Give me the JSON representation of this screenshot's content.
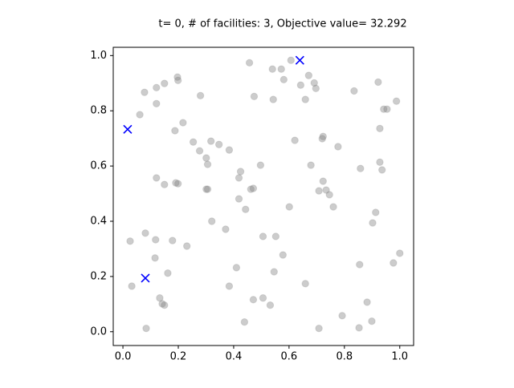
{
  "chart_data": {
    "type": "scatter",
    "title": "t= 0, # of facilities: 3, Objective value= 32.292",
    "xlim": [
      -0.035,
      1.05
    ],
    "ylim": [
      -0.05,
      1.03
    ],
    "xticks": [
      {
        "value": 0,
        "label": "0.0"
      },
      {
        "value": 0.2,
        "label": "0.2"
      },
      {
        "value": 0.4,
        "label": "0.4"
      },
      {
        "value": 0.6,
        "label": "0.6"
      },
      {
        "value": 0.8,
        "label": "0.8"
      },
      {
        "value": 1,
        "label": "1.0"
      }
    ],
    "yticks": [
      {
        "value": 0,
        "label": "0.0"
      },
      {
        "value": 0.2,
        "label": "0.2"
      },
      {
        "value": 0.4,
        "label": "0.4"
      },
      {
        "value": 0.6,
        "label": "0.6"
      },
      {
        "value": 0.8,
        "label": "0.8"
      },
      {
        "value": 1,
        "label": "1.0"
      }
    ],
    "grid": false,
    "series": [
      {
        "color": "gray",
        "alpha": 0.4,
        "marker": "o",
        "x": [
          0.457,
          0.54,
          0.572,
          0.607,
          0.671,
          0.691,
          0.642,
          0.697,
          0.581,
          0.474,
          0.543,
          0.659,
          0.835,
          0.922,
          0.942,
          0.954,
          0.988,
          0.928,
          0.621,
          0.72,
          0.723,
          0.777,
          0.858,
          0.928,
          0.936,
          0.723,
          0.734,
          0.708,
          0.746,
          0.76,
          0.679,
          0.497,
          0.419,
          0.601,
          0.913,
          0.902,
          0.552,
          0.506,
          0.855,
          0.977,
          1.0,
          0.578,
          0.546,
          0.659,
          0.882,
          0.792,
          0.899,
          0.853,
          0.708,
          0.532,
          0.506,
          0.471,
          0.439,
          0.443,
          0.371,
          0.41,
          0.384,
          0.462,
          0.471,
          0.419,
          0.425,
          0.318,
          0.347,
          0.384,
          0.254,
          0.277,
          0.301,
          0.306,
          0.301,
          0.306,
          0.217,
          0.188,
          0.28,
          0.197,
          0.199,
          0.15,
          0.121,
          0.078,
          0.121,
          0.061,
          0.121,
          0.15,
          0.191,
          0.199,
          0.231,
          0.321,
          0.179,
          0.118,
          0.081,
          0.116,
          0.162,
          0.026,
          0.032,
          0.133,
          0.142,
          0.15,
          0.084
        ],
        "values": [
          0.974,
          0.951,
          0.951,
          0.983,
          0.928,
          0.901,
          0.893,
          0.881,
          0.913,
          0.852,
          0.841,
          0.841,
          0.872,
          0.904,
          0.806,
          0.806,
          0.835,
          0.736,
          0.693,
          0.699,
          0.707,
          0.67,
          0.591,
          0.614,
          0.586,
          0.545,
          0.513,
          0.51,
          0.496,
          0.452,
          0.603,
          0.603,
          0.481,
          0.452,
          0.432,
          0.394,
          0.345,
          0.345,
          0.243,
          0.249,
          0.284,
          0.278,
          0.217,
          0.174,
          0.107,
          0.058,
          0.038,
          0.014,
          0.012,
          0.096,
          0.122,
          0.116,
          0.035,
          0.443,
          0.371,
          0.232,
          0.165,
          0.516,
          0.519,
          0.557,
          0.58,
          0.69,
          0.678,
          0.658,
          0.687,
          0.655,
          0.629,
          0.606,
          0.516,
          0.516,
          0.757,
          0.728,
          0.855,
          0.922,
          0.91,
          0.899,
          0.884,
          0.867,
          0.826,
          0.786,
          0.557,
          0.533,
          0.539,
          0.536,
          0.31,
          0.4,
          0.33,
          0.333,
          0.357,
          0.267,
          0.212,
          0.328,
          0.165,
          0.122,
          0.101,
          0.096,
          0.012
        ]
      },
      {
        "color": "blue",
        "alpha": 1,
        "marker": "x",
        "x": [
          0.017,
          0.081,
          0.639
        ],
        "values": [
          0.733,
          0.194,
          0.983
        ]
      }
    ]
  }
}
